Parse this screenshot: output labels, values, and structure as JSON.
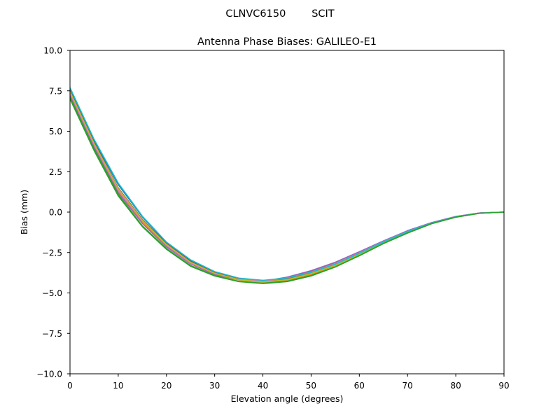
{
  "figure": {
    "suptitle": "CLNVC6150        SCIT"
  },
  "chart_data": {
    "type": "line",
    "title": "Antenna Phase Biases: GALILEO-E1",
    "xlabel": "Elevation angle (degrees)",
    "ylabel": "Bias (mm)",
    "xlim": [
      0,
      90
    ],
    "ylim": [
      -10,
      10
    ],
    "grid": false,
    "legend": "none",
    "x_ticks": [
      "0",
      "10",
      "20",
      "30",
      "40",
      "50",
      "60",
      "70",
      "80",
      "90"
    ],
    "y_ticks": [
      "10.0",
      "7.5",
      "5.0",
      "2.5",
      "0.0",
      "−2.5",
      "−5.0",
      "−7.5",
      "−10.0"
    ],
    "x": [
      0,
      5,
      10,
      15,
      20,
      25,
      30,
      35,
      40,
      45,
      50,
      55,
      60,
      65,
      70,
      75,
      80,
      85,
      90
    ],
    "series": [
      {
        "color": "#1f77b4",
        "values": [
          7.6,
          4.4,
          1.7,
          -0.3,
          -1.9,
          -3.0,
          -3.7,
          -4.1,
          -4.25,
          -4.1,
          -3.7,
          -3.2,
          -2.5,
          -1.8,
          -1.15,
          -0.65,
          -0.27,
          -0.05,
          0.0
        ]
      },
      {
        "color": "#ff7f0e",
        "values": [
          7.3,
          4.1,
          1.3,
          -0.6,
          -2.1,
          -3.2,
          -3.85,
          -4.2,
          -4.35,
          -4.2,
          -3.85,
          -3.3,
          -2.6,
          -1.9,
          -1.25,
          -0.7,
          -0.3,
          -0.06,
          0.0
        ]
      },
      {
        "color": "#2ca02c",
        "values": [
          7.0,
          3.8,
          1.0,
          -0.9,
          -2.3,
          -3.35,
          -3.95,
          -4.3,
          -4.42,
          -4.3,
          -3.95,
          -3.4,
          -2.7,
          -1.95,
          -1.3,
          -0.72,
          -0.32,
          -0.07,
          0.0
        ]
      },
      {
        "color": "#d62728",
        "values": [
          7.4,
          4.2,
          1.4,
          -0.5,
          -2.0,
          -3.1,
          -3.75,
          -4.12,
          -4.25,
          -4.05,
          -3.65,
          -3.15,
          -2.5,
          -1.82,
          -1.18,
          -0.66,
          -0.28,
          -0.05,
          0.0
        ]
      },
      {
        "color": "#9467bd",
        "values": [
          7.2,
          4.0,
          1.2,
          -0.7,
          -2.15,
          -3.2,
          -3.85,
          -4.18,
          -4.28,
          -4.02,
          -3.62,
          -3.1,
          -2.45,
          -1.78,
          -1.15,
          -0.65,
          -0.27,
          -0.05,
          0.0
        ]
      },
      {
        "color": "#8c564b",
        "values": [
          7.5,
          4.3,
          1.5,
          -0.45,
          -1.95,
          -3.05,
          -3.75,
          -4.15,
          -4.3,
          -4.15,
          -3.78,
          -3.25,
          -2.58,
          -1.86,
          -1.22,
          -0.69,
          -0.29,
          -0.06,
          0.0
        ]
      },
      {
        "color": "#e377c2",
        "values": [
          7.35,
          4.15,
          1.35,
          -0.55,
          -2.05,
          -3.15,
          -3.8,
          -4.16,
          -4.27,
          -4.08,
          -3.7,
          -3.18,
          -2.52,
          -1.83,
          -1.19,
          -0.67,
          -0.28,
          -0.05,
          0.0
        ]
      },
      {
        "color": "#bcbd22",
        "values": [
          7.45,
          4.25,
          1.45,
          -0.5,
          -2.0,
          -3.1,
          -3.78,
          -4.18,
          -4.33,
          -4.18,
          -3.8,
          -3.28,
          -2.6,
          -1.88,
          -1.23,
          -0.7,
          -0.3,
          -0.06,
          0.0
        ]
      },
      {
        "color": "#17becf",
        "values": [
          7.7,
          4.5,
          1.8,
          -0.25,
          -1.85,
          -2.95,
          -3.68,
          -4.08,
          -4.22,
          -4.08,
          -3.72,
          -3.22,
          -2.55,
          -1.84,
          -1.2,
          -0.68,
          -0.29,
          -0.06,
          0.0
        ]
      },
      {
        "color": "#2ca02c",
        "values": [
          7.1,
          3.9,
          1.1,
          -0.85,
          -2.25,
          -3.3,
          -3.92,
          -4.28,
          -4.4,
          -4.27,
          -3.92,
          -3.38,
          -2.68,
          -1.93,
          -1.28,
          -0.71,
          -0.31,
          -0.07,
          0.0
        ]
      }
    ]
  }
}
